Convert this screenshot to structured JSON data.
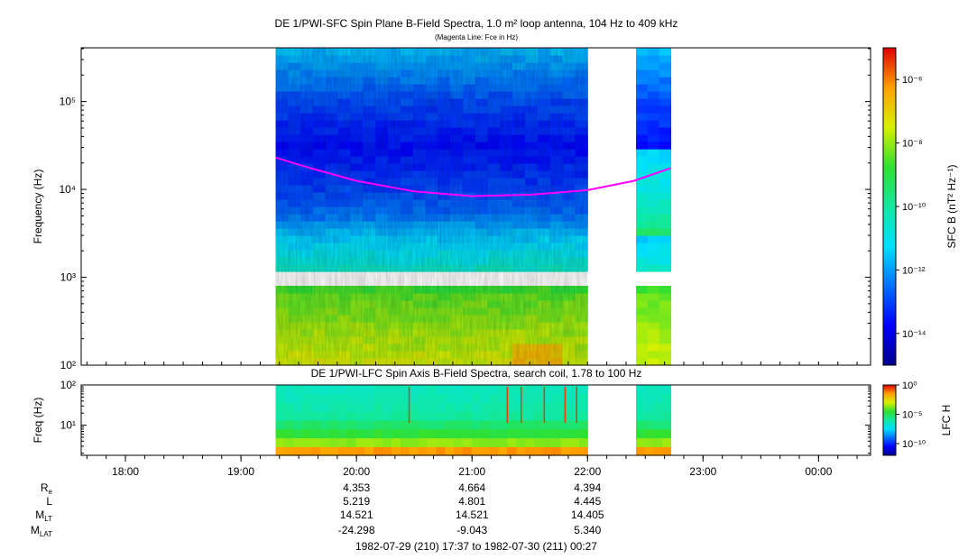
{
  "panels": [
    {
      "title": "DE 1/PWI-SFC  Spin Plane B-Field Spectra, 1.0 m² loop antenna, 104 Hz to 409 kHz",
      "subtitle": "(Magenta Line: Fce in Hz)",
      "ylabel": "Frequency (Hz)",
      "colorbar_label": "SFC B (nT² Hz⁻¹)"
    },
    {
      "title": "DE 1/PWI-LFC  Spin Axis B-Field Spectra, search coil, 1.78 to 100 Hz",
      "ylabel": "Freq (Hz)",
      "colorbar_label": "LFC H"
    }
  ],
  "ephemeris": {
    "labels": [
      "Rₑ",
      "L",
      "Mₗₜ",
      "Mₗₐₜ"
    ],
    "rows": [
      [
        "4.353",
        "4.664",
        "4.394"
      ],
      [
        "5.219",
        "4.801",
        "4.445"
      ],
      [
        "14.521",
        "14.521",
        "14.405"
      ],
      [
        "-24.298",
        "-9.043",
        "5.340"
      ]
    ]
  },
  "time_range": "1982-07-29 (210) 17:37 to 1982-07-30 (211) 00:27",
  "chart_data": [
    {
      "type": "heatmap",
      "title": "DE 1/PWI-SFC  Spin Plane B-Field Spectra, 1.0 m² loop antenna, 104 Hz to 409 kHz",
      "subtitle": "(Magenta Line: Fce in Hz)",
      "ylabel": "Frequency (Hz)",
      "yscale": "log",
      "ylim": [
        100,
        409000
      ],
      "xlim_hours": [
        17.617,
        24.45
      ],
      "x_ticks": [
        "18:00",
        "19:00",
        "20:00",
        "21:00",
        "22:00",
        "23:00",
        "00:00"
      ],
      "y_ticks": [
        {
          "value": 100,
          "label": "10²"
        },
        {
          "value": 1000,
          "label": "10³"
        },
        {
          "value": 10000,
          "label": "10⁴"
        },
        {
          "value": 100000,
          "label": "10⁵"
        }
      ],
      "data_intervals_hours": [
        [
          19.3,
          22.0
        ],
        [
          22.42,
          22.72
        ]
      ],
      "gap_band_hz": [
        880,
        1030
      ],
      "colorbar": {
        "label": "SFC B (nT² Hz⁻¹)",
        "scale": "log",
        "range": [
          1e-15,
          1e-05
        ],
        "ticks": [
          {
            "value": 1e-06,
            "label": "10⁻⁶"
          },
          {
            "value": 1e-08,
            "label": "10⁻⁸"
          },
          {
            "value": 1e-10,
            "label": "10⁻¹⁰"
          },
          {
            "value": 1e-12,
            "label": "10⁻¹²"
          },
          {
            "value": 1e-14,
            "label": "10⁻¹⁴"
          }
        ]
      },
      "overlay_line": {
        "name": "Fce",
        "color": "#ff00ff",
        "x_hours": [
          19.3,
          19.6,
          20.0,
          20.5,
          21.0,
          21.5,
          22.0,
          22.4,
          22.72
        ],
        "y_hz": [
          23000,
          17500,
          12500,
          9500,
          8400,
          8700,
          9800,
          12500,
          17500
        ]
      },
      "spectrum_levels": {
        "f_hz": [
          100,
          150,
          250,
          400,
          700,
          1000,
          1500,
          3000,
          5000,
          10000,
          30000,
          100000,
          409000
        ],
        "log_power": [
          -7.5,
          -7.7,
          -7.9,
          -8.2,
          -8.5,
          -10.2,
          -10.8,
          -11.5,
          -12.4,
          -13.0,
          -13.6,
          -12.9,
          -11.6
        ]
      }
    },
    {
      "type": "heatmap",
      "title": "DE 1/PWI-LFC  Spin Axis B-Field Spectra, search coil, 1.78 to 100 Hz",
      "ylabel": "Freq (Hz)",
      "yscale": "log",
      "ylim": [
        1.78,
        100
      ],
      "y_ticks": [
        {
          "value": 10,
          "label": "10¹"
        },
        {
          "value": 100,
          "label": "10²"
        }
      ],
      "data_intervals_hours": [
        [
          19.3,
          22.0
        ],
        [
          22.42,
          22.72
        ]
      ],
      "colorbar": {
        "label": "LFC H",
        "scale": "log",
        "range": [
          1e-12,
          1
        ],
        "ticks": [
          {
            "value": 1,
            "label": "10⁰"
          },
          {
            "value": 1e-05,
            "label": "10⁻⁵"
          },
          {
            "value": 1e-10,
            "label": "10⁻¹⁰"
          }
        ]
      },
      "spectrum_levels": {
        "f_hz": [
          1.78,
          2.5,
          3.5,
          5,
          7,
          10,
          18,
          40,
          100
        ],
        "log_power": [
          -0.5,
          -1.8,
          -3.5,
          -4.2,
          -4.8,
          -5.3,
          -6.0,
          -6.3,
          -6.5
        ]
      }
    }
  ]
}
